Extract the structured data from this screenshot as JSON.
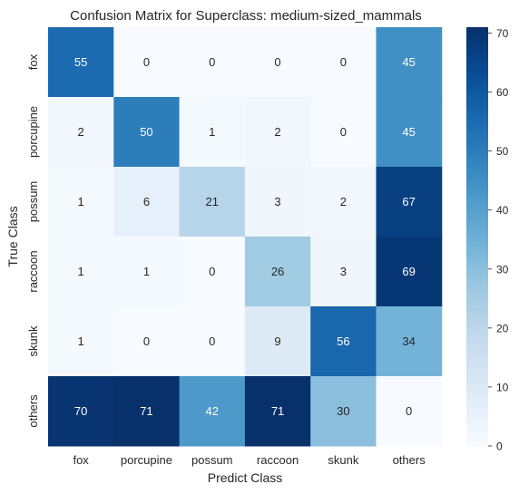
{
  "chart_data": {
    "type": "heatmap",
    "title": "Confusion Matrix for Superclass: medium-sized_mammals",
    "xlabel": "Predict Class",
    "ylabel": "True Class",
    "x_categories": [
      "fox",
      "porcupine",
      "possum",
      "raccoon",
      "skunk",
      "others"
    ],
    "y_categories": [
      "fox",
      "porcupine",
      "possum",
      "raccoon",
      "skunk",
      "others"
    ],
    "matrix": [
      [
        55,
        0,
        0,
        0,
        0,
        45
      ],
      [
        2,
        50,
        1,
        2,
        0,
        45
      ],
      [
        1,
        6,
        21,
        3,
        2,
        67
      ],
      [
        1,
        1,
        0,
        26,
        3,
        69
      ],
      [
        1,
        0,
        0,
        9,
        56,
        34
      ],
      [
        70,
        71,
        42,
        71,
        30,
        0
      ]
    ],
    "colormap": "Blues",
    "colorbar": {
      "min": 0,
      "max": 71,
      "ticks": [
        0,
        10,
        20,
        30,
        40,
        50,
        60,
        70
      ]
    },
    "grid": false
  }
}
